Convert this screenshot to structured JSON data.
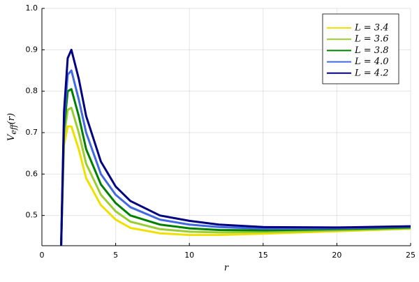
{
  "chart_data": {
    "type": "line",
    "xlabel": "r",
    "ylabel": {
      "base": "V",
      "subscript": "eff",
      "suffix": "(r)"
    },
    "x": [
      1.3,
      1.5,
      1.75,
      2,
      2.5,
      3,
      4,
      5,
      6,
      8,
      10,
      12,
      15,
      20,
      25
    ],
    "series": [
      {
        "name": "L = 3.4",
        "color": "#f0e000",
        "values": [
          0.42,
          0.67,
          0.715,
          0.715,
          0.66,
          0.59,
          0.525,
          0.49,
          0.47,
          0.457,
          0.453,
          0.453,
          0.456,
          0.462,
          0.468
        ]
      },
      {
        "name": "L = 3.6",
        "color": "#9acd32",
        "values": [
          0.42,
          0.69,
          0.755,
          0.76,
          0.7,
          0.625,
          0.55,
          0.51,
          0.485,
          0.467,
          0.461,
          0.459,
          0.46,
          0.464,
          0.469
        ]
      },
      {
        "name": "L = 3.8",
        "color": "#008000",
        "values": [
          0.42,
          0.71,
          0.8,
          0.805,
          0.74,
          0.66,
          0.575,
          0.53,
          0.5,
          0.478,
          0.469,
          0.465,
          0.464,
          0.467,
          0.471
        ]
      },
      {
        "name": "L = 4.0",
        "color": "#4169e1",
        "values": [
          0.42,
          0.73,
          0.84,
          0.85,
          0.78,
          0.7,
          0.6,
          0.55,
          0.52,
          0.49,
          0.478,
          0.472,
          0.468,
          0.469,
          0.473
        ]
      },
      {
        "name": "L = 4.2",
        "color": "#000080",
        "values": [
          0.42,
          0.75,
          0.88,
          0.9,
          0.83,
          0.74,
          0.63,
          0.57,
          0.535,
          0.5,
          0.487,
          0.478,
          0.472,
          0.471,
          0.474
        ]
      }
    ],
    "xlim": [
      0,
      25
    ],
    "xticks": [
      0,
      5,
      10,
      15,
      20,
      25
    ],
    "ylim": [
      0.427,
      1.0
    ],
    "yticks": [
      0.5,
      0.6,
      0.7,
      0.8,
      0.9,
      {
        "value": 1.0,
        "label": "1.0"
      }
    ],
    "grid": true,
    "legend": "top-right"
  }
}
